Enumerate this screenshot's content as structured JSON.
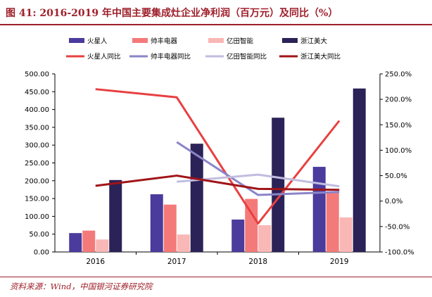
{
  "title": "图 41: 2016-2019 年中国主要集成灶企业净利润（百万元）及同比（%）",
  "source": "资料来源：Wind，中国银河证券研究院",
  "chart_data": {
    "type": "bar",
    "categories": [
      "2016",
      "2017",
      "2018",
      "2019"
    ],
    "ylim": [
      0,
      500
    ],
    "yticks": [
      "0.00",
      "50.00",
      "100.00",
      "150.00",
      "200.00",
      "250.00",
      "300.00",
      "350.00",
      "400.00",
      "450.00",
      "500.00"
    ],
    "y2lim": [
      -100,
      250
    ],
    "y2ticks": [
      "-100.0%",
      "-50.0%",
      "0.0%",
      "50.0%",
      "100.0%",
      "150.0%",
      "200.0%",
      "250.0%"
    ],
    "series": [
      {
        "name": "火星人",
        "values": [
          53,
          162,
          91,
          239
        ],
        "color": "#4a3b9c"
      },
      {
        "name": "帅丰电器",
        "values": [
          60,
          133,
          149,
          170
        ],
        "color": "#f47a7a"
      },
      {
        "name": "亿田智能",
        "values": [
          35,
          49,
          75,
          97
        ],
        "color": "#f9b7b5"
      },
      {
        "name": "浙江美大",
        "values": [
          202,
          304,
          377,
          459
        ],
        "color": "#2b2257"
      }
    ],
    "line_series": [
      {
        "name": "火星人同比",
        "values": [
          220,
          204,
          -44,
          158
        ],
        "color": "#e84040",
        "categories": [
          "2016",
          "2017",
          "2018",
          "2019"
        ]
      },
      {
        "name": "帅丰电器同比",
        "values": [
          116,
          12,
          18
        ],
        "color": "#8a85c8",
        "categories": [
          "2017",
          "2018",
          "2019"
        ]
      },
      {
        "name": "亿田智能同比",
        "values": [
          38,
          52,
          29
        ],
        "color": "#c0bde0",
        "categories": [
          "2017",
          "2018",
          "2019"
        ]
      },
      {
        "name": "浙江美大同比",
        "values": [
          30,
          50,
          24,
          22
        ],
        "color": "#a01418",
        "categories": [
          "2016",
          "2017",
          "2018",
          "2019"
        ]
      }
    ],
    "legend": [
      "火星人",
      "帅丰电器",
      "亿田智能",
      "浙江美大",
      "火星人同比",
      "帅丰电器同比",
      "亿田智能同比",
      "浙江美大同比"
    ]
  }
}
